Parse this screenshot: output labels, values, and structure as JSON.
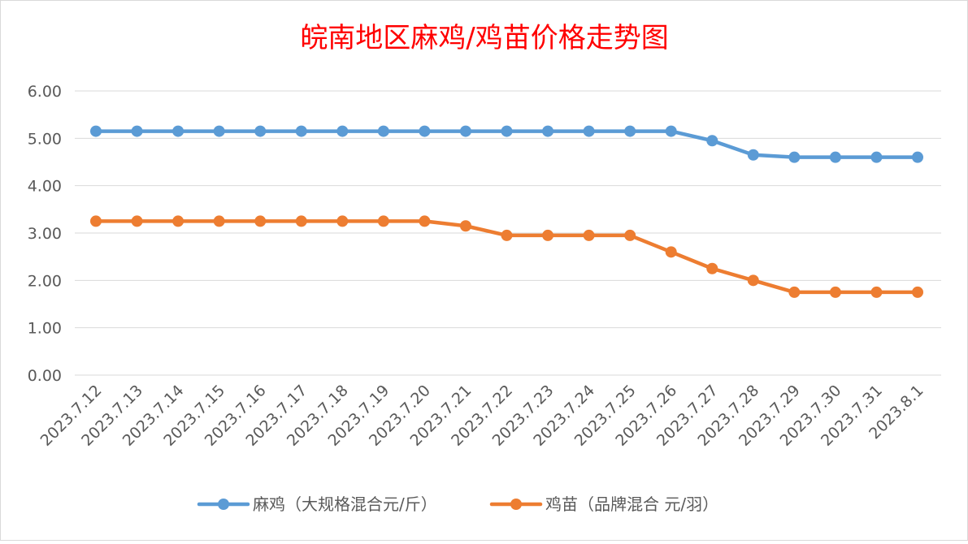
{
  "chart_data": {
    "type": "line",
    "title": "皖南地区麻鸡/鸡苗价格走势图",
    "categories": [
      "2023.7.12",
      "2023.7.13",
      "2023.7.14",
      "2023.7.15",
      "2023.7.16",
      "2023.7.17",
      "2023.7.18",
      "2023.7.19",
      "2023.7.20",
      "2023.7.21",
      "2023.7.22",
      "2023.7.23",
      "2023.7.24",
      "2023.7.25",
      "2023.7.26",
      "2023.7.27",
      "2023.7.28",
      "2023.7.29",
      "2023.7.30",
      "2023.7.31",
      "2023.8.1"
    ],
    "series": [
      {
        "name": "麻鸡（大规格混合元/斤）",
        "color": "#5b9bd5",
        "values": [
          5.15,
          5.15,
          5.15,
          5.15,
          5.15,
          5.15,
          5.15,
          5.15,
          5.15,
          5.15,
          5.15,
          5.15,
          5.15,
          5.15,
          5.15,
          4.95,
          4.65,
          4.6,
          4.6,
          4.6,
          4.6
        ]
      },
      {
        "name": "鸡苗（品牌混合 元/羽）",
        "color": "#ed7d31",
        "values": [
          3.25,
          3.25,
          3.25,
          3.25,
          3.25,
          3.25,
          3.25,
          3.25,
          3.25,
          3.15,
          2.95,
          2.95,
          2.95,
          2.95,
          2.6,
          2.25,
          2.0,
          1.75,
          1.75,
          1.75,
          1.75
        ]
      }
    ],
    "yticks": [
      "0.00",
      "1.00",
      "2.00",
      "3.00",
      "4.00",
      "5.00",
      "6.00"
    ],
    "ylim": [
      0,
      6
    ],
    "grid": true,
    "legend_position": "bottom",
    "title_color": "#ff0000"
  }
}
